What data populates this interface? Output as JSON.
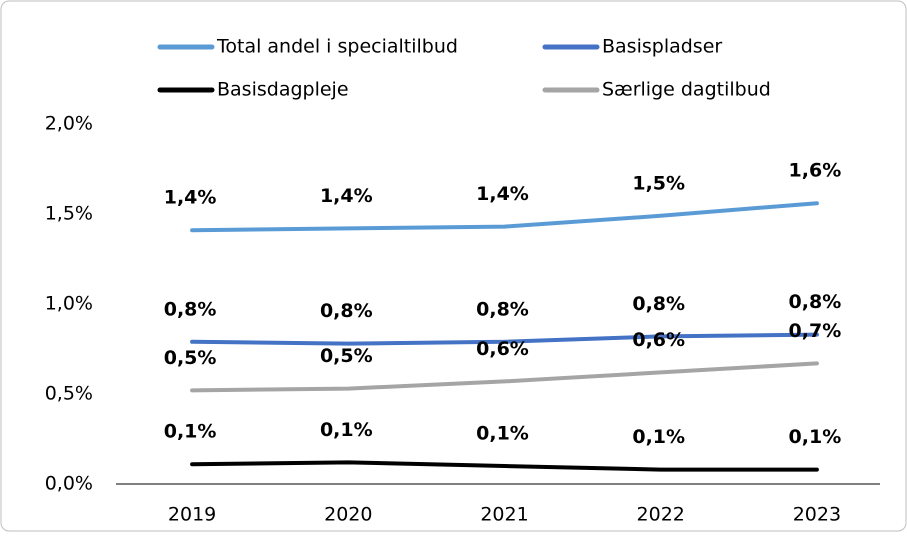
{
  "chart_data": {
    "type": "line",
    "categories": [
      "2019",
      "2020",
      "2021",
      "2022",
      "2023"
    ],
    "series": [
      {
        "name": "Total andel i specialtilbud",
        "color": "#5b9bd5",
        "values": [
          1.41,
          1.42,
          1.43,
          1.49,
          1.56
        ],
        "value_labels": [
          "1,4%",
          "1,4%",
          "1,4%",
          "1,5%",
          "1,6%"
        ]
      },
      {
        "name": "Basispladser",
        "color": "#4472c4",
        "values": [
          0.79,
          0.78,
          0.79,
          0.82,
          0.83
        ],
        "value_labels": [
          "0,8%",
          "0,8%",
          "0,8%",
          "0,8%",
          "0,8%"
        ]
      },
      {
        "name": "Basisdagpleje",
        "color": "#000000",
        "values": [
          0.11,
          0.12,
          0.1,
          0.08,
          0.08
        ],
        "value_labels": [
          "0,1%",
          "0,1%",
          "0,1%",
          "0,1%",
          "0,1%"
        ]
      },
      {
        "name": "Særlige dagtilbud",
        "color": "#a5a5a5",
        "values": [
          0.52,
          0.53,
          0.57,
          0.62,
          0.67
        ],
        "value_labels": [
          "0,5%",
          "0,5%",
          "0,6%",
          "0,6%",
          "0,7%"
        ]
      }
    ],
    "ylim": [
      0,
      2
    ],
    "yticks": [
      {
        "value": 0,
        "label": "0,0%"
      },
      {
        "value": 0.5,
        "label": "0,5%"
      },
      {
        "value": 1,
        "label": "1,0%"
      },
      {
        "value": 1.5,
        "label": "1,5%"
      },
      {
        "value": 2,
        "label": "2,0%"
      }
    ],
    "legend": "top"
  }
}
